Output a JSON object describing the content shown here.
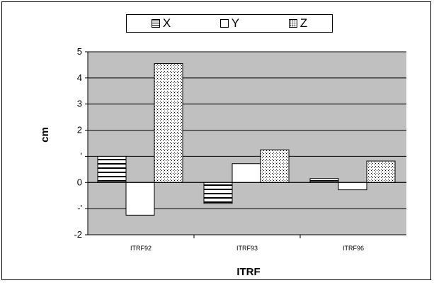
{
  "chart_data": {
    "type": "bar",
    "categories": [
      "ITRF92",
      "ITRF93",
      "ITRF96"
    ],
    "series": [
      {
        "name": "X",
        "values": [
          1.0,
          -0.8,
          0.15
        ]
      },
      {
        "name": "Y",
        "values": [
          -1.25,
          0.72,
          -0.28
        ]
      },
      {
        "name": "Z",
        "values": [
          4.55,
          1.25,
          0.82
        ]
      }
    ],
    "xlabel": "ITRF",
    "ylabel": "cm",
    "ylim": [
      -2,
      5
    ],
    "yticks": [
      "-2",
      "-'",
      "0",
      "'",
      "2",
      "3",
      "4",
      "5"
    ],
    "grid": true,
    "legend_position": "top"
  },
  "colors": {
    "plot_background": "#c0c0c0",
    "bar_fill": "#ffffff",
    "pattern": "#000000"
  },
  "patterns": {
    "X": "horizontal-lines",
    "Y": "none",
    "Z": "dots"
  }
}
